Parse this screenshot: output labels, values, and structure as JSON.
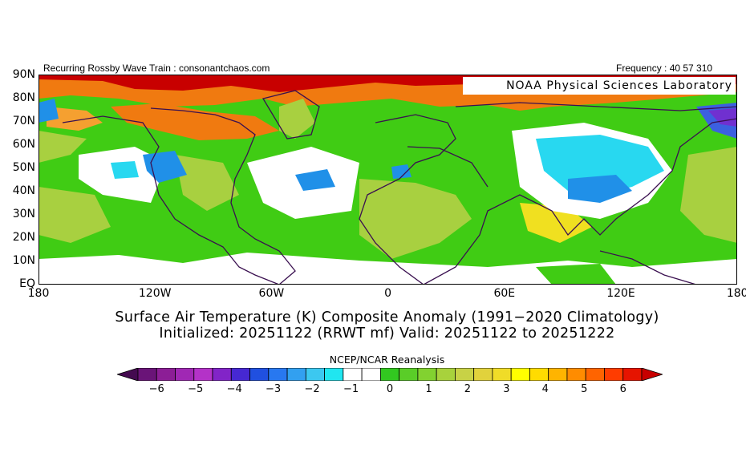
{
  "header": {
    "left": "Recurring Rossby Wave Train : consonantchaos.com",
    "right": "Frequency : 40 57 310"
  },
  "map": {
    "credit": "NOAA Physical Sciences Laboratory",
    "lat_labels": [
      "90N",
      "80N",
      "70N",
      "60N",
      "50N",
      "40N",
      "30N",
      "20N",
      "10N",
      "EQ"
    ],
    "lon_labels": [
      "180",
      "120W",
      "60W",
      "0",
      "60E",
      "120E",
      "180"
    ],
    "colors": {
      "red": "#c80000",
      "orange": "#f07a10",
      "lorange": "#f5a030",
      "yellow": "#f0e020",
      "yg": "#a8d040",
      "green": "#40cc14",
      "white": "#ffffff",
      "cyan": "#28d8f0",
      "blue": "#2090e8",
      "dblue": "#3c60e0",
      "purple": "#7030d0",
      "border": "#3a1050"
    }
  },
  "title": {
    "line1": "Surface Air Temperature (K) Composite Anomaly (1991−2020 Climatology)",
    "line2": "Initialized: 20251122 (RRWT mf) Valid: 20251122 to 20251222"
  },
  "colorbar": {
    "label": "NCEP/NCAR Reanalysis",
    "ticks": [
      "−6",
      "−5",
      "−4",
      "−3",
      "−2",
      "−1",
      "0",
      "1",
      "2",
      "3",
      "4",
      "5",
      "6"
    ],
    "colors": [
      "#440a50",
      "#6a1478",
      "#8c1e96",
      "#a028b4",
      "#b432c8",
      "#8224c8",
      "#4628d2",
      "#2050e0",
      "#2878f0",
      "#32a0f0",
      "#3cc8f0",
      "#20e6f0",
      "#ffffff",
      "#ffffff",
      "#32c820",
      "#5acd28",
      "#82d230",
      "#a8d23c",
      "#c8d246",
      "#e1d23c",
      "#f0dc28",
      "#ffff00",
      "#ffdc00",
      "#ffb400",
      "#ff8c00",
      "#ff6400",
      "#ff3c00",
      "#e61400",
      "#c80000"
    ]
  }
}
